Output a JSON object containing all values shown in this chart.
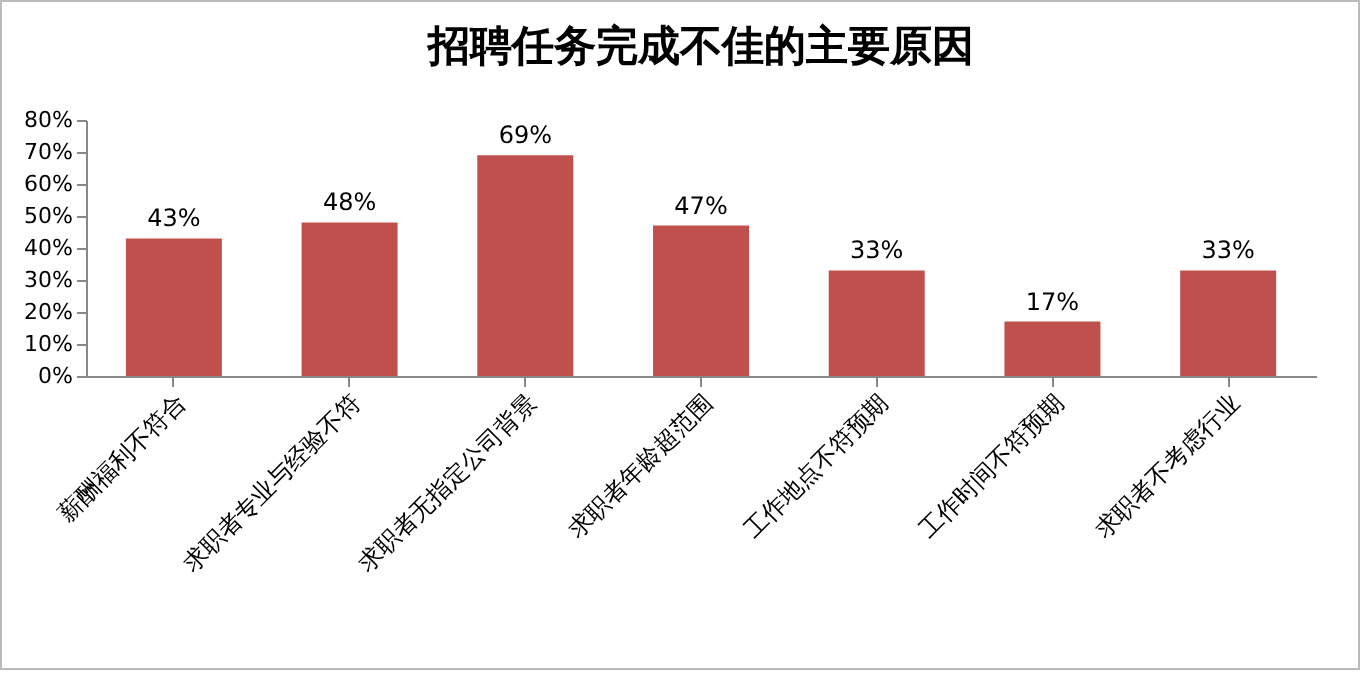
{
  "chart_data": {
    "type": "bar",
    "title": "招聘任务完成不佳的主要原因",
    "categories": [
      "薪酬福利不符合",
      "求职者专业与经验不符",
      "求职者无指定公司背景",
      "求职者年龄超范围",
      "工作地点不符预期",
      "工作时间不符预期",
      "求职者不考虑行业"
    ],
    "values": [
      43,
      48,
      69,
      47,
      33,
      17,
      33
    ],
    "value_labels": [
      "43%",
      "48%",
      "69%",
      "47%",
      "33%",
      "17%",
      "33%"
    ],
    "color": "#c0504d",
    "ylim": [
      0,
      80
    ],
    "yticks": [
      {
        "value": 0,
        "label": "0%"
      },
      {
        "value": 10,
        "label": "10%"
      },
      {
        "value": 20,
        "label": "20%"
      },
      {
        "value": 30,
        "label": "30%"
      },
      {
        "value": 40,
        "label": "40%"
      },
      {
        "value": 50,
        "label": "50%"
      },
      {
        "value": 60,
        "label": "60%"
      },
      {
        "value": 70,
        "label": "70%"
      },
      {
        "value": 80,
        "label": "80%"
      }
    ],
    "grid": false
  }
}
